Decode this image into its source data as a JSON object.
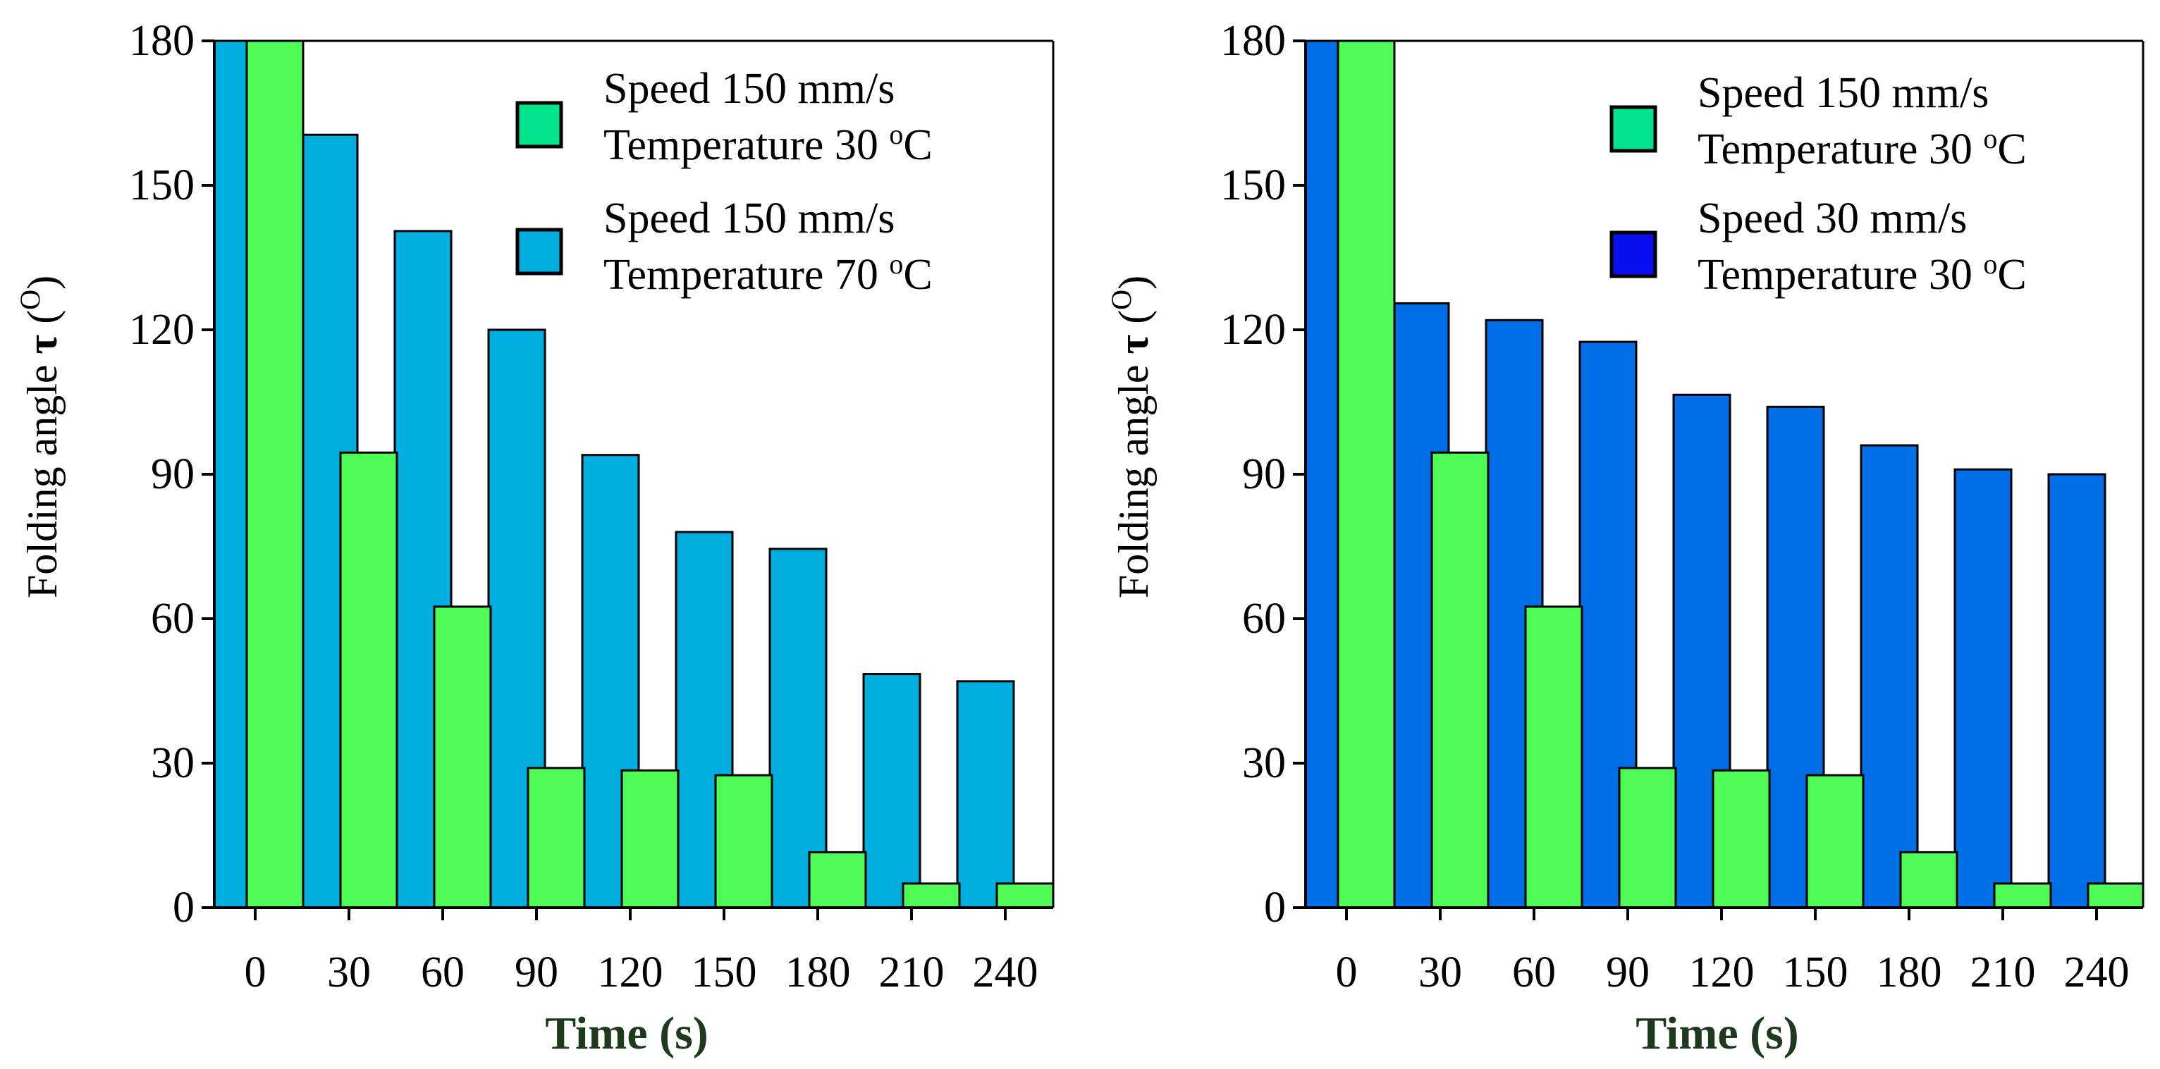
{
  "chart_data": [
    {
      "type": "bar",
      "title": "",
      "xlabel": "Time (s)",
      "ylabel_main": "Folding angle ",
      "ylabel_symbol": "τ",
      "ylabel_unit": " (°)",
      "ylabel_unit_open": " (",
      "ylabel_unit_degree": "O",
      "ylabel_unit_close": ")",
      "categories": [
        "0",
        "30",
        "60",
        "90",
        "120",
        "150",
        "180",
        "210",
        "240"
      ],
      "ylim": [
        0,
        180
      ],
      "yticks": [
        "0",
        "30",
        "60",
        "90",
        "120",
        "150",
        "180"
      ],
      "legend_position": "top-right",
      "series": [
        {
          "name": "Speed 150 mm/s Temperature 70 °C",
          "legend_line1": "Speed 150 mm/s",
          "legend_line2": "Temperature 70 °C",
          "legend_line2_prefix": "Temperature 70 ",
          "legend_line2_degree": "o",
          "legend_line2_unit": "C",
          "color": "#00aee0",
          "legend_color": "#00aee0",
          "values": [
            180,
            160.5,
            140.5,
            120,
            94,
            78,
            74.5,
            48.5,
            47
          ]
        },
        {
          "name": "Speed 150 mm/s Temperature 30 °C",
          "legend_line1": "Speed 150 mm/s",
          "legend_line2": "Temperature 30 °C",
          "legend_line2_prefix": "Temperature 30 ",
          "legend_line2_degree": "o",
          "legend_line2_unit": "C",
          "color": "#4ffc55",
          "legend_color": "#00e58c",
          "values": [
            180,
            94.5,
            62.5,
            29,
            28.5,
            27.5,
            11.5,
            5,
            5
          ]
        }
      ]
    },
    {
      "type": "bar",
      "title": "",
      "xlabel": "Time (s)",
      "ylabel_main": "Folding angle ",
      "ylabel_symbol": "τ",
      "ylabel_unit": " (°)",
      "ylabel_unit_open": " (",
      "ylabel_unit_degree": "O",
      "ylabel_unit_close": ")",
      "categories": [
        "0",
        "30",
        "60",
        "90",
        "120",
        "150",
        "180",
        "210",
        "240"
      ],
      "ylim": [
        0,
        180
      ],
      "yticks": [
        "0",
        "30",
        "60",
        "90",
        "120",
        "150",
        "180"
      ],
      "legend_position": "top-right",
      "series": [
        {
          "name": "Speed 30 mm/s Temperature 30 °C",
          "legend_line1": "Speed 30 mm/s",
          "legend_line2": "Temperature 30 °C",
          "legend_line2_prefix": "Temperature 30 ",
          "legend_line2_degree": "o",
          "legend_line2_unit": "C",
          "color": "#006ee6",
          "legend_color": "#0a0ff0",
          "values": [
            180,
            125.5,
            122,
            117.5,
            106.5,
            104,
            96,
            91,
            90
          ]
        },
        {
          "name": "Speed 150 mm/s Temperature 30 °C",
          "legend_line1": "Speed 150 mm/s",
          "legend_line2": "Temperature 30 °C",
          "legend_line2_prefix": "Temperature 30 ",
          "legend_line2_degree": "o",
          "legend_line2_unit": "C",
          "color": "#4ffc55",
          "legend_color": "#00e58c",
          "values": [
            180,
            94.5,
            62.5,
            29,
            28.5,
            27.5,
            11.5,
            5,
            5
          ]
        }
      ]
    }
  ],
  "style": {
    "xlabel_color": "#1d3a1d",
    "axis_color": "#000000"
  }
}
